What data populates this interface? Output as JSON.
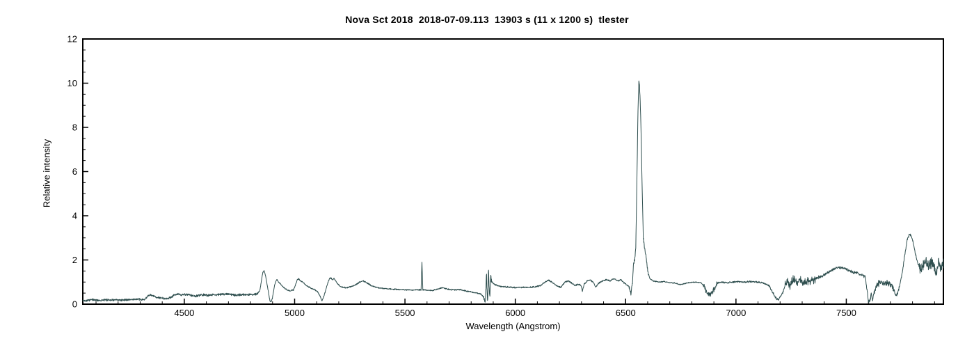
{
  "chart_data": {
    "type": "line",
    "title": "Nova Sct 2018  2018-07-09.113  13903 s (11 x 1200 s)  tlester",
    "xlabel": "Wavelength (Angstrom)",
    "ylabel": "Relative intensity",
    "xlim": [
      4040,
      7940
    ],
    "ylim": [
      0,
      12
    ],
    "x_major_ticks": [
      4500,
      5000,
      5500,
      6000,
      6500,
      7000,
      7500
    ],
    "x_minor_step": 100,
    "y_major_ticks": [
      0,
      2,
      4,
      6,
      8,
      10,
      12
    ],
    "y_minor_step": 0.5,
    "grid": false,
    "legend": null,
    "line_color": "#2f4f4f",
    "axis_color": "#000000",
    "background_color": "#ffffff",
    "series": [
      {
        "name": "spectrum",
        "anchors": [
          [
            4040,
            0.15
          ],
          [
            4080,
            0.2
          ],
          [
            4120,
            0.17
          ],
          [
            4160,
            0.2
          ],
          [
            4200,
            0.18
          ],
          [
            4240,
            0.2
          ],
          [
            4280,
            0.22
          ],
          [
            4320,
            0.2
          ],
          [
            4335,
            0.38
          ],
          [
            4350,
            0.4
          ],
          [
            4365,
            0.35
          ],
          [
            4380,
            0.3
          ],
          [
            4400,
            0.27
          ],
          [
            4420,
            0.25
          ],
          [
            4440,
            0.3
          ],
          [
            4455,
            0.42
          ],
          [
            4470,
            0.45
          ],
          [
            4490,
            0.42
          ],
          [
            4510,
            0.44
          ],
          [
            4530,
            0.4
          ],
          [
            4550,
            0.36
          ],
          [
            4570,
            0.4
          ],
          [
            4590,
            0.42
          ],
          [
            4610,
            0.4
          ],
          [
            4630,
            0.44
          ],
          [
            4650,
            0.42
          ],
          [
            4670,
            0.45
          ],
          [
            4690,
            0.47
          ],
          [
            4710,
            0.44
          ],
          [
            4730,
            0.4
          ],
          [
            4750,
            0.42
          ],
          [
            4770,
            0.44
          ],
          [
            4790,
            0.42
          ],
          [
            4810,
            0.44
          ],
          [
            4830,
            0.46
          ],
          [
            4842,
            0.6
          ],
          [
            4850,
            1.1
          ],
          [
            4856,
            1.45
          ],
          [
            4862,
            1.5
          ],
          [
            4868,
            1.3
          ],
          [
            4875,
            0.9
          ],
          [
            4882,
            0.5
          ],
          [
            4888,
            0.15
          ],
          [
            4893,
            0.1
          ],
          [
            4900,
            0.3
          ],
          [
            4908,
            0.8
          ],
          [
            4915,
            1.05
          ],
          [
            4920,
            1.1
          ],
          [
            4928,
            1.0
          ],
          [
            4938,
            0.9
          ],
          [
            4950,
            0.75
          ],
          [
            4965,
            0.65
          ],
          [
            4980,
            0.6
          ],
          [
            4995,
            0.65
          ],
          [
            5005,
            0.9
          ],
          [
            5012,
            1.1
          ],
          [
            5018,
            1.15
          ],
          [
            5026,
            1.05
          ],
          [
            5036,
            1.0
          ],
          [
            5048,
            0.9
          ],
          [
            5060,
            0.8
          ],
          [
            5075,
            0.72
          ],
          [
            5090,
            0.65
          ],
          [
            5105,
            0.55
          ],
          [
            5118,
            0.3
          ],
          [
            5124,
            0.15
          ],
          [
            5130,
            0.3
          ],
          [
            5140,
            0.6
          ],
          [
            5150,
            0.95
          ],
          [
            5158,
            1.15
          ],
          [
            5164,
            1.2
          ],
          [
            5172,
            1.1
          ],
          [
            5178,
            1.18
          ],
          [
            5186,
            1.05
          ],
          [
            5196,
            0.9
          ],
          [
            5208,
            0.8
          ],
          [
            5220,
            0.76
          ],
          [
            5235,
            0.74
          ],
          [
            5250,
            0.78
          ],
          [
            5265,
            0.82
          ],
          [
            5280,
            0.9
          ],
          [
            5295,
            1.0
          ],
          [
            5310,
            1.05
          ],
          [
            5322,
            1.0
          ],
          [
            5335,
            0.92
          ],
          [
            5350,
            0.82
          ],
          [
            5370,
            0.76
          ],
          [
            5390,
            0.73
          ],
          [
            5410,
            0.7
          ],
          [
            5440,
            0.68
          ],
          [
            5470,
            0.66
          ],
          [
            5500,
            0.65
          ],
          [
            5530,
            0.64
          ],
          [
            5560,
            0.65
          ],
          [
            5573,
            0.65
          ],
          [
            5577,
            1.9
          ],
          [
            5581,
            0.65
          ],
          [
            5600,
            0.63
          ],
          [
            5625,
            0.62
          ],
          [
            5650,
            0.68
          ],
          [
            5668,
            0.75
          ],
          [
            5685,
            0.7
          ],
          [
            5700,
            0.66
          ],
          [
            5725,
            0.65
          ],
          [
            5750,
            0.66
          ],
          [
            5775,
            0.6
          ],
          [
            5800,
            0.55
          ],
          [
            5825,
            0.5
          ],
          [
            5845,
            0.45
          ],
          [
            5858,
            0.3
          ],
          [
            5864,
            0.1
          ],
          [
            5869,
            1.3
          ],
          [
            5874,
            0.1
          ],
          [
            5879,
            1.45
          ],
          [
            5884,
            0.15
          ],
          [
            5889,
            1.2
          ],
          [
            5895,
            1.0
          ],
          [
            5905,
            0.9
          ],
          [
            5920,
            0.84
          ],
          [
            5940,
            0.8
          ],
          [
            5960,
            0.78
          ],
          [
            5985,
            0.76
          ],
          [
            6010,
            0.75
          ],
          [
            6035,
            0.76
          ],
          [
            6060,
            0.76
          ],
          [
            6090,
            0.78
          ],
          [
            6115,
            0.85
          ],
          [
            6135,
            1.0
          ],
          [
            6150,
            1.08
          ],
          [
            6165,
            1.0
          ],
          [
            6185,
            0.85
          ],
          [
            6205,
            0.76
          ],
          [
            6225,
            1.0
          ],
          [
            6240,
            1.05
          ],
          [
            6255,
            0.95
          ],
          [
            6270,
            0.85
          ],
          [
            6285,
            0.9
          ],
          [
            6298,
            0.85
          ],
          [
            6304,
            0.58
          ],
          [
            6312,
            0.9
          ],
          [
            6325,
            1.05
          ],
          [
            6340,
            1.1
          ],
          [
            6352,
            1.0
          ],
          [
            6365,
            0.78
          ],
          [
            6378,
            0.95
          ],
          [
            6395,
            1.05
          ],
          [
            6412,
            1.1
          ],
          [
            6430,
            1.05
          ],
          [
            6448,
            1.15
          ],
          [
            6462,
            1.05
          ],
          [
            6478,
            1.1
          ],
          [
            6495,
            0.95
          ],
          [
            6505,
            0.88
          ],
          [
            6515,
            0.8
          ],
          [
            6524,
            0.45
          ],
          [
            6531,
            1.0
          ],
          [
            6536,
            1.85
          ],
          [
            6541,
            2.0
          ],
          [
            6546,
            2.6
          ],
          [
            6551,
            5.5
          ],
          [
            6556,
            8.8
          ],
          [
            6560,
            10.1
          ],
          [
            6563,
            9.9
          ],
          [
            6566,
            9.2
          ],
          [
            6570,
            7.8
          ],
          [
            6575,
            5.2
          ],
          [
            6580,
            3.0
          ],
          [
            6586,
            2.5
          ],
          [
            6592,
            2.2
          ],
          [
            6600,
            1.5
          ],
          [
            6610,
            1.15
          ],
          [
            6625,
            1.05
          ],
          [
            6650,
            1.0
          ],
          [
            6675,
            1.02
          ],
          [
            6700,
            0.98
          ],
          [
            6725,
            0.95
          ],
          [
            6745,
            0.88
          ],
          [
            6765,
            0.92
          ],
          [
            6790,
            0.98
          ],
          [
            6815,
            1.0
          ],
          [
            6840,
            0.98
          ],
          [
            6858,
            0.8
          ],
          [
            6868,
            0.5
          ],
          [
            6878,
            0.42
          ],
          [
            6890,
            0.5
          ],
          [
            6902,
            0.7
          ],
          [
            6915,
            0.95
          ],
          [
            6935,
            1.0
          ],
          [
            6960,
            0.97
          ],
          [
            6985,
            1.0
          ],
          [
            7010,
            1.02
          ],
          [
            7040,
            1.0
          ],
          [
            7070,
            1.02
          ],
          [
            7100,
            1.0
          ],
          [
            7125,
            0.95
          ],
          [
            7150,
            0.85
          ],
          [
            7168,
            0.5
          ],
          [
            7180,
            0.28
          ],
          [
            7192,
            0.22
          ],
          [
            7205,
            0.35
          ],
          [
            7218,
            0.7
          ],
          [
            7230,
            1.0
          ],
          [
            7245,
            0.85
          ],
          [
            7260,
            1.15
          ],
          [
            7275,
            0.9
          ],
          [
            7290,
            1.15
          ],
          [
            7305,
            0.95
          ],
          [
            7320,
            1.1
          ],
          [
            7335,
            1.0
          ],
          [
            7350,
            1.1
          ],
          [
            7370,
            1.2
          ],
          [
            7395,
            1.3
          ],
          [
            7420,
            1.45
          ],
          [
            7445,
            1.6
          ],
          [
            7465,
            1.68
          ],
          [
            7490,
            1.62
          ],
          [
            7515,
            1.52
          ],
          [
            7540,
            1.42
          ],
          [
            7565,
            1.35
          ],
          [
            7585,
            1.25
          ],
          [
            7594,
            0.7
          ],
          [
            7600,
            0.15
          ],
          [
            7607,
            0.1
          ],
          [
            7613,
            0.45
          ],
          [
            7619,
            0.2
          ],
          [
            7626,
            0.5
          ],
          [
            7635,
            0.8
          ],
          [
            7648,
            0.95
          ],
          [
            7660,
            1.0
          ],
          [
            7675,
            0.92
          ],
          [
            7690,
            0.95
          ],
          [
            7705,
            0.9
          ],
          [
            7715,
            0.65
          ],
          [
            7724,
            0.4
          ],
          [
            7733,
            0.5
          ],
          [
            7743,
            0.9
          ],
          [
            7755,
            1.5
          ],
          [
            7766,
            2.3
          ],
          [
            7776,
            2.9
          ],
          [
            7786,
            3.15
          ],
          [
            7794,
            3.1
          ],
          [
            7803,
            2.8
          ],
          [
            7813,
            2.3
          ],
          [
            7824,
            1.85
          ],
          [
            7835,
            1.6
          ],
          [
            7848,
            1.75
          ],
          [
            7860,
            1.95
          ],
          [
            7872,
            1.7
          ],
          [
            7884,
            1.95
          ],
          [
            7896,
            1.75
          ],
          [
            7908,
            1.3
          ],
          [
            7916,
            1.9
          ],
          [
            7928,
            1.75
          ],
          [
            7940,
            1.85
          ]
        ],
        "noise_bands": [
          [
            4040,
            4835,
            0.06
          ],
          [
            4835,
            5856,
            0.035
          ],
          [
            5856,
            5898,
            0.3
          ],
          [
            5898,
            6515,
            0.04
          ],
          [
            6515,
            6605,
            0.1
          ],
          [
            6605,
            6852,
            0.03
          ],
          [
            6852,
            6915,
            0.15
          ],
          [
            6915,
            7145,
            0.045
          ],
          [
            7145,
            7222,
            0.07
          ],
          [
            7222,
            7360,
            0.22
          ],
          [
            7360,
            7585,
            0.08
          ],
          [
            7585,
            7632,
            0.12
          ],
          [
            7632,
            7712,
            0.18
          ],
          [
            7712,
            7748,
            0.09
          ],
          [
            7748,
            7830,
            0.07
          ],
          [
            7830,
            7940,
            0.32
          ]
        ]
      }
    ]
  }
}
